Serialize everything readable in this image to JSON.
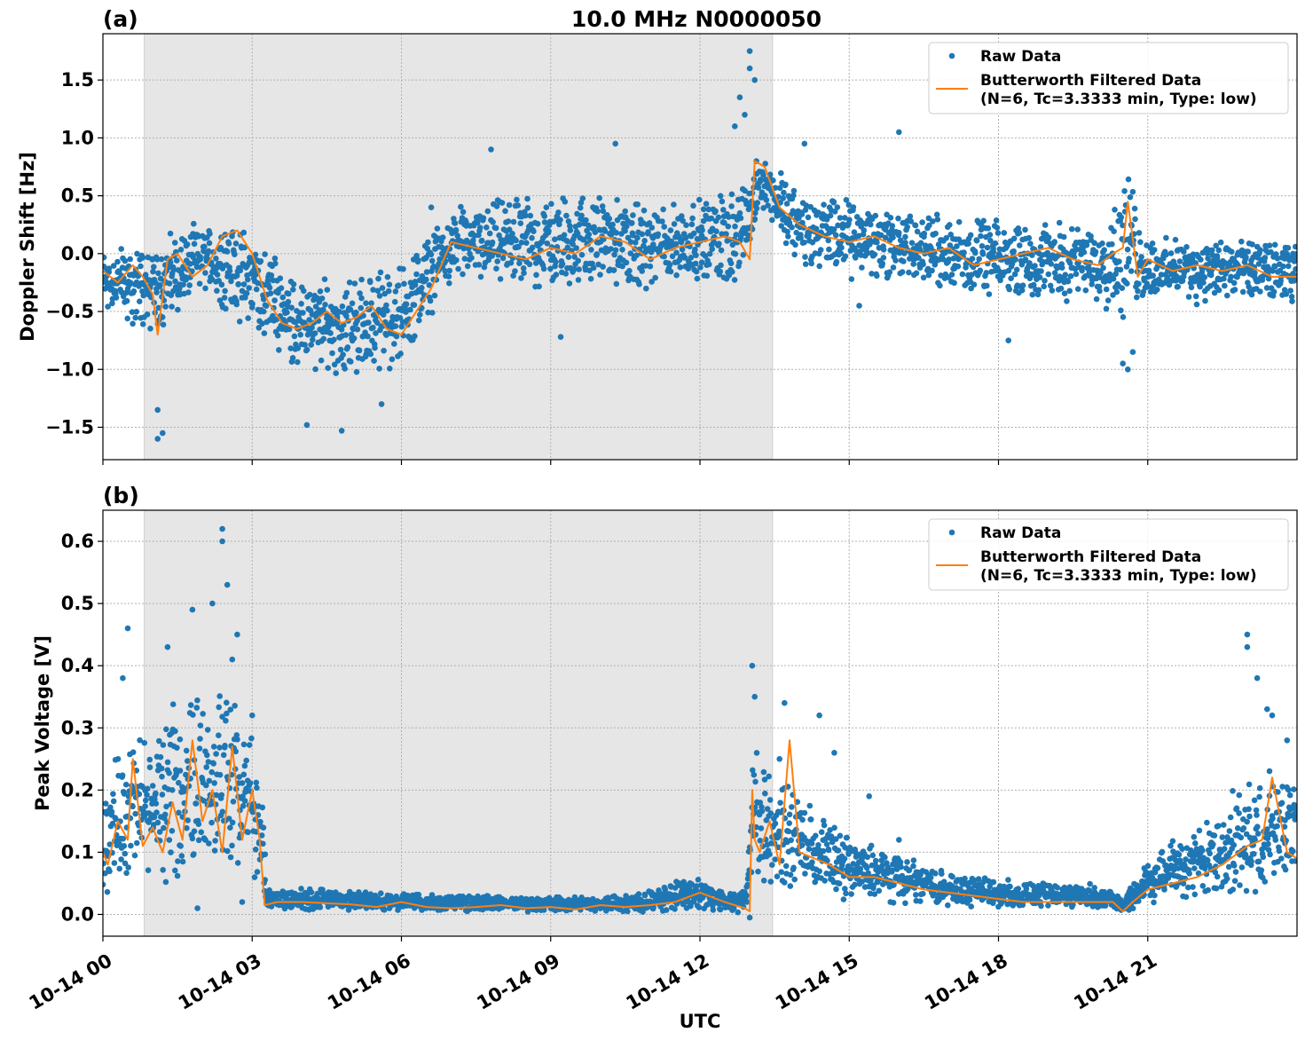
{
  "figure": {
    "title": "10.0 MHz N0000050",
    "xlabel": "UTC",
    "x_tick_labels": [
      "10-14 00",
      "10-14 03",
      "10-14 06",
      "10-14 09",
      "10-14 12",
      "10-14 15",
      "10-14 18",
      "10-14 21"
    ],
    "shaded_interval_hours": [
      0.83,
      13.46
    ],
    "colors": {
      "raw": "#1f77b4",
      "filtered": "#ff7f0e",
      "shade": "#e6e6e6"
    }
  },
  "chart_data": [
    {
      "panel_label": "(a)",
      "type": "scatter",
      "ylabel": "Doppler Shift [Hz]",
      "ylim": [
        -1.78,
        1.9
      ],
      "yticks": [
        -1.5,
        -1.0,
        -0.5,
        0.0,
        0.5,
        1.0,
        1.5
      ],
      "ytick_labels": [
        "−1.5",
        "−1.0",
        "−0.5",
        "0.0",
        "0.5",
        "1.0",
        "1.5"
      ],
      "xlim_hours": [
        0,
        24
      ],
      "grid": true,
      "legend": {
        "placement": "top-right",
        "raw_label": "Raw Data",
        "filtered_label_line1": "Butterworth Filtered Data",
        "filtered_label_line2": "(N=6, Tc=3.3333 min, Type: low)"
      },
      "filtered_series": {
        "name": "Butterworth Filtered Data",
        "x_hours": [
          0,
          0.3,
          0.6,
          0.8,
          1.0,
          1.1,
          1.3,
          1.5,
          1.8,
          2.1,
          2.4,
          2.7,
          3.0,
          3.3,
          3.6,
          3.9,
          4.2,
          4.5,
          4.8,
          5.1,
          5.4,
          5.7,
          6.0,
          6.3,
          6.6,
          6.8,
          7.0,
          7.5,
          8.0,
          8.5,
          9.0,
          9.5,
          10.0,
          10.5,
          11.0,
          11.5,
          12.0,
          12.5,
          12.8,
          13.0,
          13.1,
          13.3,
          13.6,
          14.0,
          14.5,
          15.0,
          15.5,
          16.0,
          16.5,
          17.0,
          17.5,
          18.0,
          18.5,
          19.0,
          19.5,
          20.0,
          20.3,
          20.5,
          20.6,
          20.8,
          21.0,
          21.5,
          22.0,
          22.5,
          23.0,
          23.5,
          24.0
        ],
        "y": [
          -0.15,
          -0.25,
          -0.1,
          -0.2,
          -0.35,
          -0.7,
          -0.05,
          0.0,
          -0.2,
          -0.1,
          0.15,
          0.2,
          0.0,
          -0.4,
          -0.6,
          -0.65,
          -0.6,
          -0.5,
          -0.6,
          -0.55,
          -0.45,
          -0.65,
          -0.7,
          -0.5,
          -0.3,
          -0.1,
          0.1,
          0.05,
          0.0,
          -0.05,
          0.05,
          0.0,
          0.15,
          0.1,
          -0.05,
          0.05,
          0.1,
          0.15,
          0.1,
          -0.05,
          0.8,
          0.75,
          0.4,
          0.25,
          0.15,
          0.1,
          0.15,
          0.05,
          0.0,
          0.05,
          -0.1,
          -0.05,
          0.0,
          0.05,
          -0.05,
          -0.1,
          0.0,
          0.05,
          0.45,
          -0.2,
          -0.05,
          -0.15,
          -0.1,
          -0.15,
          -0.1,
          -0.2,
          -0.2
        ]
      },
      "raw_series": {
        "name": "Raw Data",
        "band_x_hours": [
          0,
          1,
          2,
          3,
          4,
          5,
          6,
          7,
          8,
          9,
          10,
          11,
          12,
          12.9,
          13.2,
          14,
          15,
          16,
          17,
          18,
          19,
          20,
          20.6,
          21,
          22,
          23,
          24
        ],
        "band_low": [
          -0.55,
          -0.75,
          -0.35,
          -0.7,
          -1.05,
          -1.1,
          -1.0,
          -0.25,
          -0.3,
          -0.35,
          -0.3,
          -0.35,
          -0.25,
          -0.35,
          0.4,
          -0.15,
          -0.25,
          -0.3,
          -0.35,
          -0.4,
          -0.4,
          -0.45,
          -0.7,
          -0.4,
          -0.45,
          -0.45,
          -0.45
        ],
        "band_high": [
          0.1,
          0.15,
          0.3,
          0.25,
          -0.2,
          -0.15,
          -0.05,
          0.4,
          0.5,
          0.55,
          0.55,
          0.45,
          0.5,
          0.7,
          0.9,
          0.6,
          0.5,
          0.45,
          0.35,
          0.3,
          0.3,
          0.25,
          0.8,
          0.15,
          0.15,
          0.15,
          0.1
        ],
        "outlier_points": [
          [
            1.1,
            -1.6
          ],
          [
            1.2,
            -1.55
          ],
          [
            1.1,
            -1.35
          ],
          [
            4.1,
            -1.48
          ],
          [
            4.8,
            -1.53
          ],
          [
            5.6,
            -1.3
          ],
          [
            6.6,
            0.4
          ],
          [
            7.8,
            0.9
          ],
          [
            9.2,
            -0.72
          ],
          [
            10.3,
            0.95
          ],
          [
            12.7,
            1.1
          ],
          [
            12.8,
            1.35
          ],
          [
            13.0,
            1.75
          ],
          [
            13.0,
            1.6
          ],
          [
            13.1,
            1.5
          ],
          [
            12.9,
            1.2
          ],
          [
            14.1,
            0.95
          ],
          [
            15.2,
            -0.45
          ],
          [
            16.0,
            1.05
          ],
          [
            18.2,
            -0.75
          ],
          [
            20.5,
            -0.95
          ],
          [
            20.6,
            -1.0
          ],
          [
            20.7,
            -0.85
          ]
        ]
      }
    },
    {
      "panel_label": "(b)",
      "type": "scatter",
      "ylabel": "Peak Voltage [V]",
      "ylim": [
        -0.035,
        0.65
      ],
      "yticks": [
        0.0,
        0.1,
        0.2,
        0.3,
        0.4,
        0.5,
        0.6
      ],
      "ytick_labels": [
        "0.0",
        "0.1",
        "0.2",
        "0.3",
        "0.4",
        "0.5",
        "0.6"
      ],
      "xlim_hours": [
        0,
        24
      ],
      "grid": true,
      "legend": {
        "placement": "top-right",
        "raw_label": "Raw Data",
        "filtered_label_line1": "Butterworth Filtered Data",
        "filtered_label_line2": "(N=6, Tc=3.3333 min, Type: low)"
      },
      "filtered_series": {
        "name": "Butterworth Filtered Data",
        "x_hours": [
          0,
          0.1,
          0.3,
          0.5,
          0.6,
          0.8,
          1.0,
          1.2,
          1.4,
          1.6,
          1.8,
          2.0,
          2.2,
          2.4,
          2.6,
          2.8,
          3.0,
          3.15,
          3.25,
          3.5,
          4.0,
          4.5,
          5.0,
          5.5,
          6.0,
          6.5,
          7.0,
          7.5,
          8.0,
          8.5,
          9.0,
          9.5,
          10.0,
          10.5,
          11.0,
          11.5,
          12.0,
          12.5,
          12.9,
          13.0,
          13.05,
          13.1,
          13.2,
          13.4,
          13.6,
          13.8,
          14.0,
          14.3,
          14.6,
          15.0,
          15.5,
          16.0,
          16.5,
          17.0,
          17.5,
          18.0,
          18.5,
          19.0,
          19.5,
          20.0,
          20.3,
          20.5,
          20.7,
          21.0,
          21.5,
          22.0,
          22.5,
          23.0,
          23.3,
          23.5,
          23.8,
          24.0
        ],
        "y": [
          0.1,
          0.08,
          0.15,
          0.12,
          0.25,
          0.11,
          0.14,
          0.1,
          0.18,
          0.12,
          0.28,
          0.15,
          0.2,
          0.1,
          0.27,
          0.12,
          0.2,
          0.12,
          0.015,
          0.02,
          0.02,
          0.018,
          0.016,
          0.012,
          0.02,
          0.012,
          0.01,
          0.012,
          0.015,
          0.01,
          0.012,
          0.008,
          0.015,
          0.012,
          0.015,
          0.02,
          0.035,
          0.02,
          0.01,
          0.005,
          0.2,
          0.12,
          0.1,
          0.15,
          0.08,
          0.28,
          0.1,
          0.09,
          0.08,
          0.06,
          0.06,
          0.05,
          0.04,
          0.035,
          0.03,
          0.025,
          0.02,
          0.02,
          0.02,
          0.02,
          0.02,
          0.005,
          0.02,
          0.04,
          0.05,
          0.06,
          0.08,
          0.11,
          0.12,
          0.22,
          0.1,
          0.09
        ]
      },
      "raw_series": {
        "name": "Raw Data",
        "band_x_hours": [
          0,
          0.5,
          1,
          1.5,
          2,
          2.5,
          3,
          3.2,
          3.3,
          4,
          5,
          6,
          7,
          8,
          9,
          10,
          11,
          11.5,
          12,
          12.5,
          12.95,
          13.05,
          13.5,
          14,
          15,
          16,
          17,
          18,
          19,
          20,
          20.5,
          21,
          22,
          23,
          24
        ],
        "band_low": [
          0.03,
          0.04,
          0.05,
          0.04,
          0.05,
          0.05,
          0.05,
          0.03,
          0.005,
          0.005,
          0.005,
          0.004,
          0.003,
          0.003,
          0.003,
          0.003,
          0.003,
          0.005,
          0.005,
          0.004,
          0.0,
          0.05,
          0.04,
          0.03,
          0.02,
          0.015,
          0.012,
          0.01,
          0.01,
          0.008,
          0.0,
          0.01,
          0.02,
          0.025,
          0.03
        ],
        "band_high": [
          0.22,
          0.3,
          0.3,
          0.35,
          0.4,
          0.38,
          0.3,
          0.2,
          0.04,
          0.045,
          0.04,
          0.035,
          0.035,
          0.03,
          0.03,
          0.03,
          0.04,
          0.06,
          0.06,
          0.04,
          0.05,
          0.3,
          0.22,
          0.2,
          0.13,
          0.1,
          0.07,
          0.06,
          0.05,
          0.05,
          0.03,
          0.1,
          0.15,
          0.22,
          0.25
        ],
        "outlier_points": [
          [
            0.5,
            0.46
          ],
          [
            0.4,
            0.38
          ],
          [
            1.3,
            0.43
          ],
          [
            1.8,
            0.49
          ],
          [
            2.2,
            0.5
          ],
          [
            2.4,
            0.62
          ],
          [
            2.4,
            0.6
          ],
          [
            2.5,
            0.53
          ],
          [
            2.7,
            0.45
          ],
          [
            2.6,
            0.41
          ],
          [
            3.0,
            0.32
          ],
          [
            1.9,
            0.01
          ],
          [
            2.8,
            0.02
          ],
          [
            13.05,
            0.4
          ],
          [
            13.1,
            0.35
          ],
          [
            13.7,
            0.34
          ],
          [
            13.6,
            0.25
          ],
          [
            14.4,
            0.32
          ],
          [
            14.7,
            0.26
          ],
          [
            15.4,
            0.19
          ],
          [
            16.0,
            0.12
          ],
          [
            23.0,
            0.45
          ],
          [
            23.0,
            0.43
          ],
          [
            23.2,
            0.38
          ],
          [
            23.4,
            0.33
          ],
          [
            23.5,
            0.32
          ],
          [
            23.8,
            0.28
          ],
          [
            13.0,
            -0.005
          ]
        ]
      }
    }
  ]
}
